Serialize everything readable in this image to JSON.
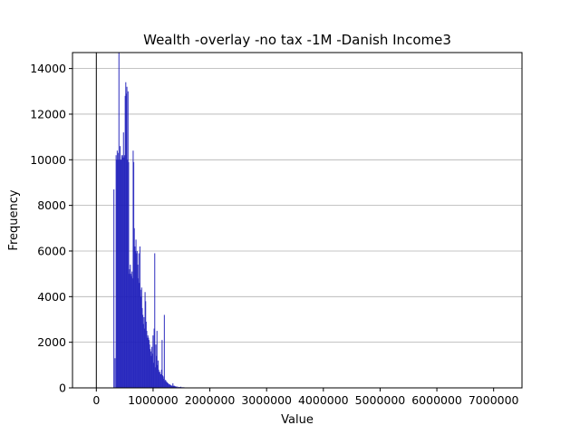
{
  "chart_data": {
    "type": "bar",
    "title": "Wealth -overlay -no tax -1M -Danish Income3",
    "xlabel": "Value",
    "ylabel": "Frequency",
    "xlim": [
      -420000,
      7500000
    ],
    "ylim": [
      0,
      14700
    ],
    "x_ticks": [
      0,
      1000000,
      2000000,
      3000000,
      4000000,
      5000000,
      6000000,
      7000000
    ],
    "y_ticks": [
      0,
      2000,
      4000,
      6000,
      8000,
      10000,
      12000,
      14000
    ],
    "grid": "y",
    "vertical_reference_line_x": 0,
    "bar_color": "#2020bb",
    "bin_width": 10000,
    "series": [
      {
        "x": [
          300000,
          320000,
          340000,
          350000,
          360000,
          370000,
          380000,
          390000,
          400000,
          410000,
          420000,
          430000,
          440000,
          450000,
          460000,
          470000,
          480000,
          490000,
          500000,
          510000,
          520000,
          530000,
          540000,
          550000,
          560000,
          570000,
          580000,
          590000,
          600000,
          610000,
          620000,
          630000,
          640000,
          650000,
          660000,
          670000,
          680000,
          690000,
          700000,
          710000,
          720000,
          730000,
          740000,
          750000,
          760000,
          770000,
          780000,
          790000,
          800000,
          810000,
          820000,
          830000,
          840000,
          850000,
          860000,
          870000,
          880000,
          890000,
          900000,
          910000,
          920000,
          930000,
          940000,
          950000,
          960000,
          970000,
          980000,
          990000,
          1000000,
          1010000,
          1020000,
          1030000,
          1040000,
          1050000,
          1060000,
          1070000,
          1080000,
          1090000,
          1100000,
          1110000,
          1120000,
          1130000,
          1140000,
          1150000,
          1160000,
          1170000,
          1180000,
          1190000,
          1200000,
          1210000,
          1220000,
          1230000,
          1240000,
          1250000,
          1260000,
          1270000,
          1280000,
          1290000,
          1300000,
          1310000,
          1320000,
          1330000,
          1340000,
          1350000,
          1360000,
          1370000,
          1380000,
          1390000,
          1400000,
          1420000,
          1440000,
          1460000,
          1480000,
          1500000,
          1520000,
          1540000,
          1560000,
          1580000,
          1600000,
          1620000,
          1640000,
          1660000,
          1680000,
          1700000,
          1720000,
          1740000,
          1760000,
          1780000,
          1800000,
          1850000,
          1900000,
          1950000,
          2000000
        ],
        "values": [
          8700,
          1300,
          10200,
          10000,
          10400,
          10000,
          10300,
          14700,
          10000,
          10600,
          10000,
          10000,
          10200,
          10100,
          10200,
          11200,
          10100,
          10200,
          12800,
          13400,
          12900,
          13200,
          10000,
          13000,
          9900,
          5000,
          5200,
          5400,
          5000,
          4900,
          5100,
          4800,
          10400,
          9900,
          7000,
          6200,
          6000,
          6500,
          5900,
          6000,
          5400,
          4800,
          5900,
          4600,
          6200,
          4300,
          4000,
          4400,
          3500,
          3200,
          2800,
          3100,
          2600,
          4200,
          3800,
          2900,
          2500,
          2200,
          2300,
          2200,
          2100,
          1900,
          1700,
          1600,
          1400,
          1800,
          1500,
          2300,
          1100,
          2600,
          5900,
          900,
          1900,
          1400,
          2500,
          1000,
          1200,
          800,
          700,
          700,
          600,
          600,
          800,
          2100,
          550,
          500,
          400,
          3200,
          300,
          350,
          300,
          250,
          250,
          200,
          200,
          150,
          150,
          150,
          120,
          100,
          100,
          90,
          200,
          80,
          100,
          80,
          60,
          70,
          50,
          60,
          40,
          40,
          50,
          30,
          30,
          25,
          20,
          20,
          15,
          15,
          10,
          10,
          10,
          10,
          8,
          5,
          5,
          5,
          3,
          3,
          2,
          2,
          1
        ]
      }
    ]
  }
}
